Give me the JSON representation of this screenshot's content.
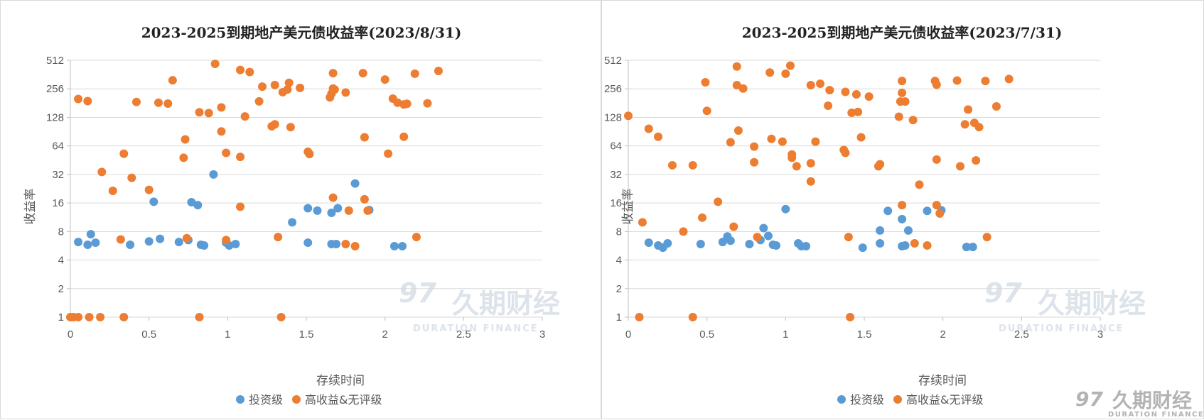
{
  "colors": {
    "investment_grade": "#5B9BD5",
    "high_yield": "#ED7D31",
    "grid": "#d9d9d9",
    "watermark": "#d6dbe3",
    "corner_logo": "#b3b3b3"
  },
  "watermark": {
    "logo_glyph": "97",
    "cn": "久期财经",
    "en": "DURATION FINANCE"
  },
  "chart_data": [
    {
      "type": "scatter",
      "title": "2023-2025到期地产美元债收益率(2023/8/31)",
      "xlabel": "存续时间",
      "ylabel": "收益率",
      "xlim": [
        0,
        3
      ],
      "ylim": [
        1,
        512
      ],
      "yscale": "log2",
      "x_ticks": [
        "0",
        "0.5",
        "1",
        "1.5",
        "2",
        "2.5",
        "3"
      ],
      "y_ticks": [
        "1",
        "2",
        "4",
        "8",
        "16",
        "32",
        "64",
        "128",
        "256",
        "512"
      ],
      "legend": [
        "投资级",
        "高收益&无评级"
      ],
      "series": [
        {
          "name": "投资级",
          "points": [
            [
              0.05,
              6.2
            ],
            [
              0.11,
              5.8
            ],
            [
              0.13,
              7.5
            ],
            [
              0.16,
              6.1
            ],
            [
              0.38,
              5.8
            ],
            [
              0.5,
              6.3
            ],
            [
              0.53,
              16.5
            ],
            [
              0.57,
              6.7
            ],
            [
              0.69,
              6.2
            ],
            [
              0.75,
              6.5
            ],
            [
              0.77,
              16.3
            ],
            [
              0.81,
              15.2
            ],
            [
              0.83,
              5.8
            ],
            [
              0.85,
              5.7
            ],
            [
              0.91,
              32
            ],
            [
              0.99,
              6.1
            ],
            [
              1.01,
              5.7
            ],
            [
              1.05,
              5.9
            ],
            [
              1.41,
              10
            ],
            [
              1.51,
              6.1
            ],
            [
              1.51,
              14.1
            ],
            [
              1.57,
              13.3
            ],
            [
              1.66,
              12.6
            ],
            [
              1.66,
              5.9
            ],
            [
              1.69,
              5.9
            ],
            [
              1.7,
              14.1
            ],
            [
              1.81,
              25.7
            ],
            [
              1.9,
              13.5
            ],
            [
              2.06,
              5.6
            ],
            [
              2.11,
              5.6
            ]
          ]
        },
        {
          "name": "高收益&无评级",
          "points": [
            [
              0.0,
              1
            ],
            [
              0.02,
              1
            ],
            [
              0.05,
              1
            ],
            [
              0.12,
              1
            ],
            [
              0.19,
              1
            ],
            [
              0.34,
              1
            ],
            [
              0.82,
              1
            ],
            [
              1.34,
              1
            ],
            [
              0.05,
              200
            ],
            [
              0.11,
              190
            ],
            [
              0.2,
              34
            ],
            [
              0.27,
              21.5
            ],
            [
              0.32,
              6.6
            ],
            [
              0.34,
              53
            ],
            [
              0.39,
              29.5
            ],
            [
              0.42,
              186
            ],
            [
              0.5,
              22
            ],
            [
              0.56,
              183
            ],
            [
              0.62,
              179
            ],
            [
              0.65,
              315
            ],
            [
              0.72,
              48
            ],
            [
              0.73,
              75
            ],
            [
              0.74,
              6.8
            ],
            [
              0.82,
              145
            ],
            [
              0.88,
              142
            ],
            [
              0.92,
              470
            ],
            [
              0.96,
              163
            ],
            [
              0.96,
              91
            ],
            [
              0.99,
              54
            ],
            [
              0.99,
              6.5
            ],
            [
              1.08,
              405
            ],
            [
              1.08,
              49
            ],
            [
              1.08,
              14.6
            ],
            [
              1.11,
              131
            ],
            [
              1.14,
              385
            ],
            [
              1.2,
              189
            ],
            [
              1.22,
              270
            ],
            [
              1.28,
              103
            ],
            [
              1.3,
              108
            ],
            [
              1.3,
              281
            ],
            [
              1.32,
              7
            ],
            [
              1.35,
              236
            ],
            [
              1.38,
              252
            ],
            [
              1.39,
              296
            ],
            [
              1.4,
              101
            ],
            [
              1.46,
              262
            ],
            [
              1.51,
              55.5
            ],
            [
              1.52,
              52.5
            ],
            [
              1.65,
              208
            ],
            [
              1.66,
              228
            ],
            [
              1.67,
              375
            ],
            [
              1.67,
              258
            ],
            [
              1.68,
              252
            ],
            [
              1.67,
              18.2
            ],
            [
              1.75,
              234
            ],
            [
              1.75,
              5.9
            ],
            [
              1.77,
              13.3
            ],
            [
              1.81,
              5.6
            ],
            [
              1.86,
              375
            ],
            [
              1.87,
              79
            ],
            [
              1.87,
              17.5
            ],
            [
              1.89,
              13.3
            ],
            [
              2.0,
              321
            ],
            [
              2.02,
              53
            ],
            [
              2.05,
              202
            ],
            [
              2.08,
              183
            ],
            [
              2.12,
              175
            ],
            [
              2.12,
              80
            ],
            [
              2.14,
              178
            ],
            [
              2.19,
              370
            ],
            [
              2.2,
              7
            ],
            [
              2.27,
              180
            ],
            [
              2.34,
              395
            ]
          ]
        }
      ]
    },
    {
      "type": "scatter",
      "title": "2023-2025到期地产美元债收益率(2023/7/31)",
      "xlabel": "存续时间",
      "ylabel": "收益率",
      "xlim": [
        0,
        3
      ],
      "ylim": [
        1,
        512
      ],
      "yscale": "log2",
      "x_ticks": [
        "0",
        "0.5",
        "1",
        "1.5",
        "2",
        "2.5",
        "3"
      ],
      "y_ticks": [
        "1",
        "2",
        "4",
        "8",
        "16",
        "32",
        "64",
        "128",
        "256",
        "512"
      ],
      "legend": [
        "投资级",
        "高收益&无评级"
      ],
      "series": [
        {
          "name": "投资级",
          "points": [
            [
              0.13,
              6.1
            ],
            [
              0.19,
              5.7
            ],
            [
              0.22,
              5.4
            ],
            [
              0.25,
              6
            ],
            [
              0.46,
              5.9
            ],
            [
              0.6,
              6.2
            ],
            [
              0.63,
              7.1
            ],
            [
              0.65,
              6.4
            ],
            [
              0.77,
              5.9
            ],
            [
              0.84,
              6.5
            ],
            [
              0.86,
              8.7
            ],
            [
              0.89,
              7.2
            ],
            [
              0.92,
              5.8
            ],
            [
              0.94,
              5.7
            ],
            [
              1.0,
              13.8
            ],
            [
              1.08,
              6
            ],
            [
              1.1,
              5.6
            ],
            [
              1.13,
              5.6
            ],
            [
              1.49,
              5.4
            ],
            [
              1.6,
              8.2
            ],
            [
              1.6,
              6
            ],
            [
              1.65,
              13.2
            ],
            [
              1.74,
              10.8
            ],
            [
              1.74,
              5.6
            ],
            [
              1.76,
              5.7
            ],
            [
              1.78,
              8.2
            ],
            [
              1.9,
              13.2
            ],
            [
              1.99,
              13.4
            ],
            [
              2.15,
              5.5
            ],
            [
              2.19,
              5.5
            ]
          ]
        },
        {
          "name": "高收益&无评级",
          "points": [
            [
              0.0,
              133
            ],
            [
              0.07,
              1
            ],
            [
              0.09,
              10
            ],
            [
              0.13,
              97
            ],
            [
              0.19,
              80
            ],
            [
              0.28,
              40
            ],
            [
              0.35,
              8
            ],
            [
              0.41,
              40
            ],
            [
              0.41,
              1
            ],
            [
              0.47,
              11.2
            ],
            [
              0.49,
              300
            ],
            [
              0.5,
              150
            ],
            [
              0.57,
              16.5
            ],
            [
              0.65,
              70
            ],
            [
              0.67,
              9
            ],
            [
              0.69,
              280
            ],
            [
              0.69,
              440
            ],
            [
              0.7,
              93
            ],
            [
              0.73,
              258
            ],
            [
              0.8,
              43
            ],
            [
              0.8,
              63
            ],
            [
              0.82,
              7
            ],
            [
              0.9,
              380
            ],
            [
              0.91,
              76
            ],
            [
              0.98,
              71
            ],
            [
              1.0,
              370
            ],
            [
              1.03,
              450
            ],
            [
              1.04,
              52
            ],
            [
              1.04,
              48
            ],
            [
              1.07,
              39
            ],
            [
              1.16,
              280
            ],
            [
              1.16,
              42
            ],
            [
              1.16,
              27
            ],
            [
              1.19,
              71
            ],
            [
              1.22,
              290
            ],
            [
              1.27,
              170
            ],
            [
              1.28,
              248
            ],
            [
              1.37,
              58
            ],
            [
              1.38,
              54
            ],
            [
              1.38,
              238
            ],
            [
              1.4,
              7
            ],
            [
              1.41,
              1
            ],
            [
              1.42,
              143
            ],
            [
              1.45,
              224
            ],
            [
              1.46,
              146
            ],
            [
              1.48,
              79
            ],
            [
              1.53,
              212
            ],
            [
              1.59,
              39
            ],
            [
              1.6,
              41
            ],
            [
              1.72,
              130
            ],
            [
              1.73,
              188
            ],
            [
              1.74,
              310
            ],
            [
              1.74,
              232
            ],
            [
              1.74,
              15.2
            ],
            [
              1.76,
              188
            ],
            [
              1.81,
              120
            ],
            [
              1.82,
              6
            ],
            [
              1.85,
              25
            ],
            [
              1.9,
              5.7
            ],
            [
              1.95,
              310
            ],
            [
              1.96,
              283
            ],
            [
              1.96,
              46
            ],
            [
              1.96,
              15.2
            ],
            [
              1.98,
              12.4
            ],
            [
              2.09,
              313
            ],
            [
              2.11,
              39
            ],
            [
              2.14,
              108
            ],
            [
              2.16,
              155
            ],
            [
              2.2,
              112
            ],
            [
              2.21,
              45
            ],
            [
              2.23,
              101
            ],
            [
              2.27,
              310
            ],
            [
              2.28,
              7
            ],
            [
              2.34,
              167
            ],
            [
              2.42,
              325
            ]
          ]
        }
      ]
    }
  ]
}
